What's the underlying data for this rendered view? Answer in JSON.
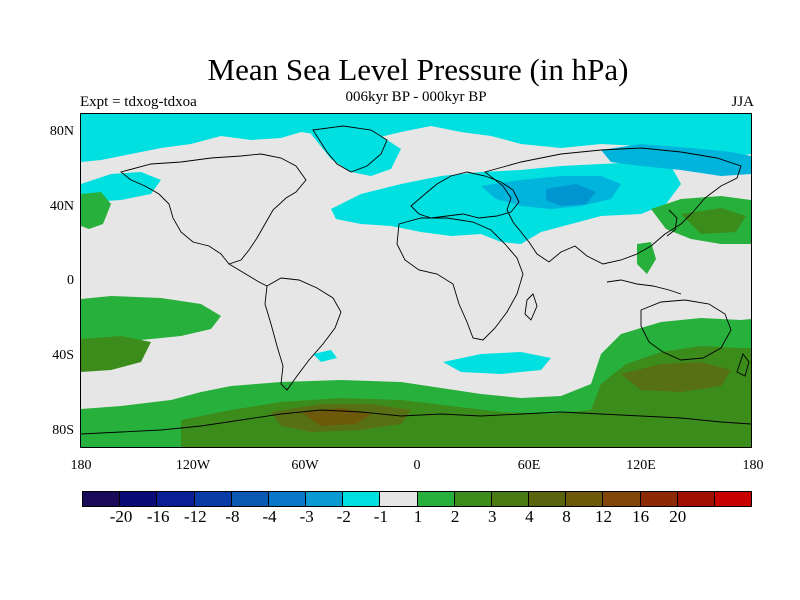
{
  "header": {
    "title": "Mean Sea Level Pressure (in hPa)",
    "subtitle": "006kyr BP - 000kyr BP",
    "experiment": "Expt = tdxog-tdxoa",
    "season": "JJA"
  },
  "map": {
    "lat_ticks": [
      "80N",
      "40N",
      "0",
      "40S",
      "80S"
    ],
    "lon_ticks": [
      "180",
      "120W",
      "60W",
      "0",
      "60E",
      "120E",
      "180"
    ],
    "colors": {
      "neutral": "#e6e6e6",
      "neg_1": "#00e0e0",
      "neg_2": "#00b4dc",
      "neg_3": "#0094d0",
      "pos_1": "#28b03c",
      "pos_2": "#3c8c1c",
      "pos_3": "#587014",
      "pos_4": "#6c5a0a",
      "coast": "#000000"
    }
  },
  "colorbar": {
    "colors": [
      "#1a0a5a",
      "#0a0a78",
      "#0a1e96",
      "#0a3ca8",
      "#0a5ab4",
      "#0a78c8",
      "#0a9ad2",
      "#00e0e0",
      "#e6e6e6",
      "#28b03c",
      "#3c8c1c",
      "#4a7a14",
      "#5a640e",
      "#6c5a0a",
      "#82460a",
      "#8c2a06",
      "#a00f00",
      "#c80000"
    ],
    "labels": [
      "-20",
      "-16",
      "-12",
      "-8",
      "-4",
      "-3",
      "-2",
      "-1",
      "1",
      "2",
      "3",
      "4",
      "8",
      "12",
      "16",
      "20"
    ]
  }
}
